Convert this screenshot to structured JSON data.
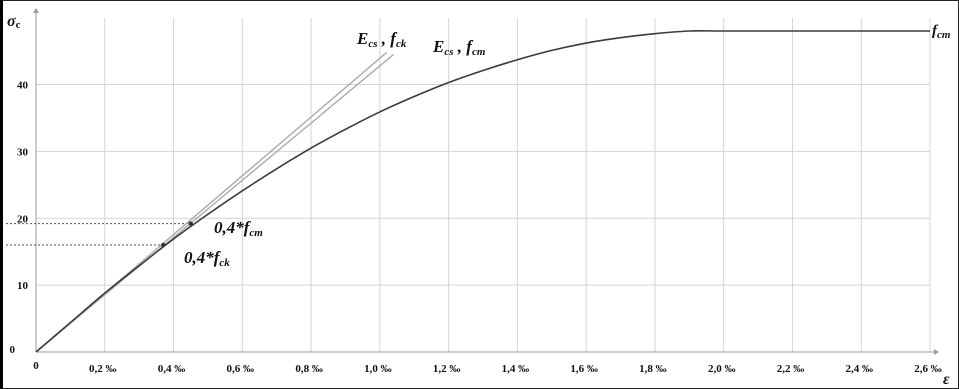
{
  "chart_data": {
    "type": "line",
    "x_unit": "‰",
    "xlim": [
      0,
      2.6
    ],
    "ylim": [
      0,
      48
    ],
    "x_ticks": [
      "0",
      "0,2 ‰",
      "0,4 ‰",
      "0,6 ‰",
      "0,8 ‰",
      "1,0 ‰",
      "1,2 ‰",
      "1,4 ‰",
      "1,6 ‰",
      "1,8 ‰",
      "2,0 ‰",
      "2,2 ‰",
      "2,4 ‰",
      "2,6 ‰"
    ],
    "x_tick_values": [
      0,
      0.2,
      0.4,
      0.6,
      0.8,
      1.0,
      1.2,
      1.4,
      1.6,
      1.8,
      2.0,
      2.2,
      2.4,
      2.6
    ],
    "y_ticks": [
      "0",
      "10",
      "20",
      "30",
      "40"
    ],
    "y_tick_values": [
      0,
      10,
      20,
      30,
      40
    ],
    "xlabel": "ε",
    "ylabel_main": "σ",
    "ylabel_sub": "c",
    "grid": true,
    "series": [
      {
        "id": "stress-strain",
        "color": "#3a3a3a",
        "x": [
          0,
          0.1,
          0.2,
          0.3,
          0.4,
          0.5,
          0.6,
          0.7,
          0.8,
          0.9,
          1.0,
          1.1,
          1.2,
          1.3,
          1.4,
          1.5,
          1.6,
          1.7,
          1.8,
          1.9,
          2.0,
          2.2,
          2.4,
          2.6
        ],
        "y": [
          0,
          4.4,
          8.8,
          12.9,
          16.9,
          20.6,
          24.1,
          27.4,
          30.5,
          33.3,
          35.9,
          38.2,
          40.3,
          42.1,
          43.7,
          45.1,
          46.2,
          47.0,
          47.6,
          48,
          48,
          48,
          48,
          48
        ]
      },
      {
        "id": "ecs-fck",
        "color": "#aaaaaa",
        "x": [
          0,
          1.02
        ],
        "y": [
          0,
          44.8
        ]
      },
      {
        "id": "ecs-fcm",
        "color": "#aaaaaa",
        "x": [
          0,
          1.04
        ],
        "y": [
          0,
          44.5
        ]
      }
    ],
    "reference_lines": [
      {
        "id": "ref-04fcm",
        "y": 19.2,
        "x_end": 0.45
      },
      {
        "id": "ref-04fck",
        "y": 16.0,
        "x_end": 0.37
      }
    ],
    "markers": [
      {
        "id": "point-04fcm",
        "x": 0.45,
        "y": 19.2
      },
      {
        "id": "point-04fck",
        "x": 0.37,
        "y": 16.0
      }
    ],
    "annotations": {
      "ecs_fck": {
        "main_1": "E",
        "sub_1": "cs",
        "sep": " , ",
        "main_2": "f",
        "sub_2": "ck"
      },
      "ecs_fcm": {
        "main_1": "E",
        "sub_1": "cs",
        "sep": " , ",
        "main_2": "f",
        "sub_2": "cm"
      },
      "fcm_right": {
        "main": "f",
        "sub": "cm"
      },
      "fcm_point": {
        "main": "0,4*f",
        "sub": "cm"
      },
      "fck_point": {
        "main": "0,4*f",
        "sub": "ck"
      }
    }
  }
}
